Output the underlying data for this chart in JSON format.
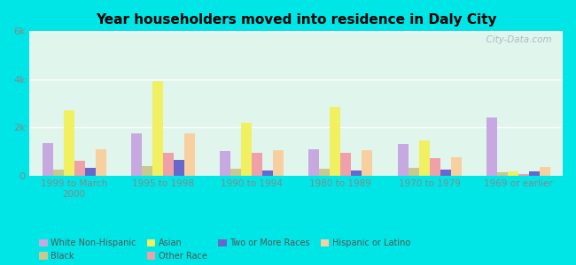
{
  "title": "Year householders moved into residence in Daly City",
  "categories": [
    "1999 to March\n2000",
    "1995 to 1998",
    "1990 to 1994",
    "1980 to 1989",
    "1970 to 1979",
    "1969 or earlier"
  ],
  "series_order": [
    "White Non-Hispanic",
    "Black",
    "Asian",
    "Other Race",
    "Two or More Races",
    "Hispanic or Latino"
  ],
  "series": {
    "White Non-Hispanic": [
      1350,
      1750,
      1000,
      1100,
      1300,
      2400
    ],
    "Black": [
      250,
      400,
      280,
      280,
      300,
      130
    ],
    "Asian": [
      2700,
      3900,
      2200,
      2850,
      1450,
      150
    ],
    "Other Race": [
      600,
      950,
      950,
      950,
      700,
      50
    ],
    "Two or More Races": [
      300,
      650,
      200,
      200,
      250,
      150
    ],
    "Hispanic or Latino": [
      1100,
      1750,
      1050,
      1050,
      750,
      350
    ]
  },
  "colors": {
    "White Non-Hispanic": "#c8a8e0",
    "Black": "#c8c890",
    "Asian": "#f0f060",
    "Other Race": "#f0a0a8",
    "Two or More Races": "#6868cc",
    "Hispanic or Latino": "#f8d0a0"
  },
  "legend_order": [
    "White Non-Hispanic",
    "Black",
    "Asian",
    "Other Race",
    "Two or More Races",
    "Hispanic or Latino"
  ],
  "ylim": [
    0,
    6000
  ],
  "yticks": [
    0,
    2000,
    4000,
    6000
  ],
  "ytick_labels": [
    "0",
    "2k",
    "4k",
    "6k"
  ],
  "background_outer": "#00e5e5",
  "background_inner": "#e0f5ec",
  "watermark": "  City-Data.com"
}
